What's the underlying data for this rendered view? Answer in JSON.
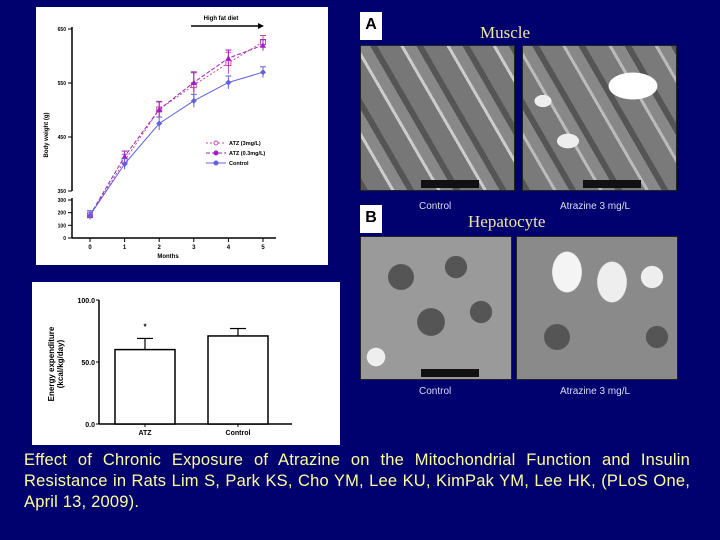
{
  "chart_data": [
    {
      "type": "line",
      "title": "",
      "annotation": "High fat diet",
      "xlabel": "Months",
      "ylabel": "Body weight (g)",
      "x": [
        0,
        1,
        2,
        3,
        4,
        5
      ],
      "y_ticks_upper": [
        350,
        450,
        550,
        650
      ],
      "y_ticks_lower": [
        0,
        100,
        200,
        300
      ],
      "axis_break": true,
      "legend_position": "right",
      "series": [
        {
          "name": "ATZ (3mg/L)",
          "color": "#c050a0",
          "marker": "open-square",
          "values": [
            180,
            406,
            501,
            546,
            587,
            626
          ],
          "errors": [
            8,
            12,
            15,
            25,
            20,
            12
          ]
        },
        {
          "name": "ATZ (0.3mg/L)",
          "color": "#a020c0",
          "marker": "triangle",
          "values": [
            180,
            414,
            501,
            551,
            596,
            620
          ],
          "errors": [
            8,
            10,
            14,
            18,
            15,
            10
          ]
        },
        {
          "name": "Control",
          "color": "#6060e0",
          "marker": "diamond",
          "values": [
            180,
            400,
            475,
            517,
            551,
            570
          ],
          "errors": [
            8,
            10,
            12,
            12,
            12,
            10
          ]
        }
      ]
    },
    {
      "type": "bar",
      "categories": [
        "ATZ",
        "Control"
      ],
      "values": [
        60,
        71
      ],
      "errors": [
        9,
        6
      ],
      "annotations": [
        "*",
        ""
      ],
      "ylabel": "Energy expenditure (kcal/kg/day)",
      "y_ticks": [
        "0.0",
        "50.0",
        "100.0"
      ],
      "ylim": [
        0,
        100
      ]
    }
  ],
  "figures": {
    "a_label": "A",
    "a_title": "Muscle",
    "b_label": "B",
    "b_title": "Hepatocyte",
    "control_caption": "Control",
    "atrazine_caption": "Atrazine 3 mg/L"
  },
  "caption": "Effect of Chronic Exposure of Atrazine on the Mitochondrial Function and Insulin Resistance in Rats  Lim S, Park KS, Cho YM, Lee KU, KimPak YM, Lee HK, (PLoS One, April 13, 2009)."
}
